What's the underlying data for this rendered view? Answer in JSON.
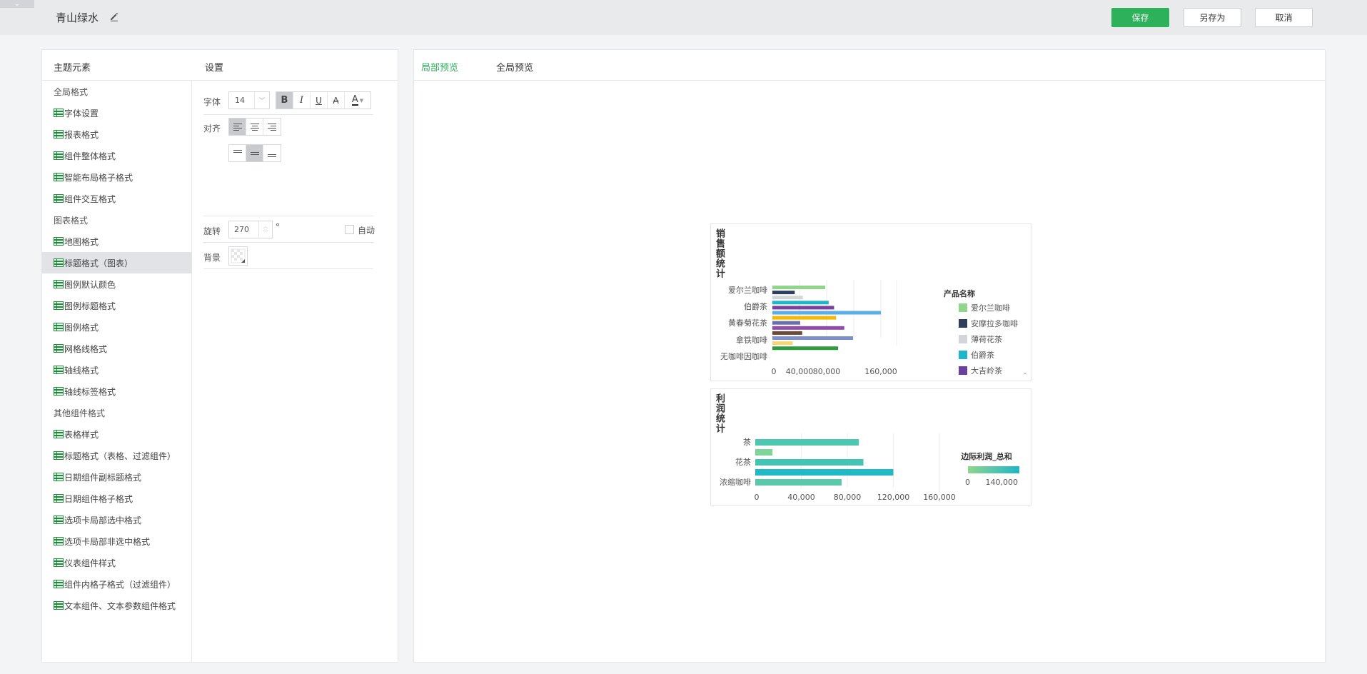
{
  "topbar": {
    "collapse_glyph": "⌄",
    "theme_title": "青山绿水",
    "save_label": "保存",
    "save_as_label": "另存为",
    "cancel_label": "取消",
    "save_color": "#2eb15b"
  },
  "left_panel": {
    "elements_header": "主题元素",
    "settings_header": "设置",
    "tree": [
      {
        "label": "全局格式",
        "type": "group"
      },
      {
        "label": "字体设置",
        "type": "leaf"
      },
      {
        "label": "报表格式",
        "type": "leaf"
      },
      {
        "label": "组件整体格式",
        "type": "leaf"
      },
      {
        "label": "智能布局格子格式",
        "type": "leaf"
      },
      {
        "label": "组件交互格式",
        "type": "leaf"
      },
      {
        "label": "图表格式",
        "type": "group"
      },
      {
        "label": "地图格式",
        "type": "leaf"
      },
      {
        "label": "标题格式（图表）",
        "type": "leaf",
        "selected": true
      },
      {
        "label": "图例默认颜色",
        "type": "leaf"
      },
      {
        "label": "图例标题格式",
        "type": "leaf"
      },
      {
        "label": "图例格式",
        "type": "leaf"
      },
      {
        "label": "网格线格式",
        "type": "leaf"
      },
      {
        "label": "轴线格式",
        "type": "leaf"
      },
      {
        "label": "轴线标签格式",
        "type": "leaf"
      },
      {
        "label": "其他组件格式",
        "type": "group"
      },
      {
        "label": "表格样式",
        "type": "leaf"
      },
      {
        "label": "标题格式（表格、过滤组件）",
        "type": "leaf"
      },
      {
        "label": "日期组件副标题格式",
        "type": "leaf"
      },
      {
        "label": "日期组件格子格式",
        "type": "leaf"
      },
      {
        "label": "选项卡局部选中格式",
        "type": "leaf"
      },
      {
        "label": "选项卡局部非选中格式",
        "type": "leaf"
      },
      {
        "label": "仪表组件样式",
        "type": "leaf"
      },
      {
        "label": "组件内格子格式（过滤组件）",
        "type": "leaf"
      },
      {
        "label": "文本组件、文本参数组件格式",
        "type": "leaf"
      }
    ],
    "settings": {
      "font_label": "字体",
      "font_size": "14",
      "align_label": "对齐",
      "rotate_label": "旋转",
      "rotate_value": "270",
      "degree_symbol": "°",
      "auto_label": "自动",
      "background_label": "背景",
      "bold_glyph": "B",
      "italic_glyph": "I",
      "underline_glyph": "U",
      "strike_glyph": "A",
      "color_glyph": "A"
    }
  },
  "right_panel": {
    "tab_local": "局部预览",
    "tab_global": "全局预览"
  },
  "chart_data": [
    {
      "type": "bar",
      "orientation": "horizontal",
      "title": "销售额统计",
      "categories": [
        "爱尔兰咖啡",
        "伯爵茶",
        "黄春菊花茶",
        "拿铁咖啡",
        "无咖啡因咖啡"
      ],
      "xticks": [
        "0",
        "40,000",
        "80,000",
        "160,000"
      ],
      "xlim": [
        0,
        200000
      ],
      "legend_title": "产品名称",
      "legend": [
        {
          "name": "爱尔兰咖啡",
          "color": "#8fd68b"
        },
        {
          "name": "安摩拉多咖啡",
          "color": "#2f3e5c"
        },
        {
          "name": "薄荷花茶",
          "color": "#d3d5d9"
        },
        {
          "name": "伯爵茶",
          "color": "#1eb6c8"
        },
        {
          "name": "大吉岭茶",
          "color": "#6b3fa0"
        }
      ],
      "bars": [
        {
          "value": 78000,
          "color": "#8fd68b"
        },
        {
          "value": 33000,
          "color": "#2f3e5c"
        },
        {
          "value": 45000,
          "color": "#d3d5d9"
        },
        {
          "value": 83000,
          "color": "#1eb6c8"
        },
        {
          "value": 91000,
          "color": "#7b3f9c"
        },
        {
          "value": 160000,
          "color": "#5aaeea"
        },
        {
          "value": 94000,
          "color": "#f5b800"
        },
        {
          "value": 41000,
          "color": "#6a6fae"
        },
        {
          "value": 106000,
          "color": "#8e4ba8"
        },
        {
          "value": 44000,
          "color": "#6b4a3a"
        },
        {
          "value": 119000,
          "color": "#7f8fc9"
        },
        {
          "value": 30000,
          "color": "#f8d675"
        },
        {
          "value": 97000,
          "color": "#2e9c3f"
        }
      ]
    },
    {
      "type": "bar",
      "orientation": "horizontal",
      "title": "利润统计",
      "categories": [
        "茶",
        "花茶",
        "浓缩咖啡"
      ],
      "xticks": [
        "0",
        "40,000",
        "80,000",
        "120,000",
        "160,000"
      ],
      "xlim": [
        0,
        160000
      ],
      "legend_title": "边际利润_总和",
      "legend_range": [
        "0",
        "140,000"
      ],
      "gradient": [
        "#8fd68b",
        "#1eb6c8"
      ],
      "bars": [
        {
          "value": 90000,
          "color": "#4ec7b0"
        },
        {
          "value": 15000,
          "color": "#7fd49a"
        },
        {
          "value": 94000,
          "color": "#43c4b4"
        },
        {
          "value": 120000,
          "color": "#22b9c6"
        },
        {
          "value": 75000,
          "color": "#58c9aa"
        }
      ]
    }
  ]
}
